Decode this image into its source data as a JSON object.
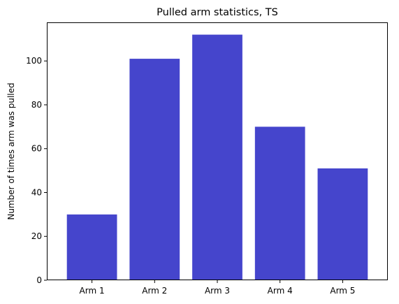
{
  "chart_data": {
    "type": "bar",
    "title": "Pulled arm statistics, TS",
    "xlabel": "",
    "ylabel": "Number of times arm was pulled",
    "categories": [
      "Arm 1",
      "Arm 2",
      "Arm 3",
      "Arm 4",
      "Arm 5"
    ],
    "values": [
      30,
      101,
      112,
      70,
      51
    ],
    "ylim": [
      0,
      117.6
    ],
    "yticks": [
      0,
      20,
      40,
      60,
      80,
      100
    ],
    "grid": false,
    "colors": {
      "bar": "#4545cc",
      "axis": "#000000",
      "background": "#ffffff"
    }
  }
}
